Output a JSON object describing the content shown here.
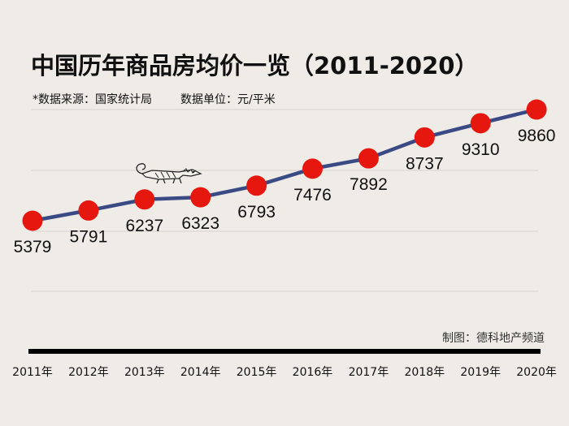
{
  "chart_data": {
    "type": "line",
    "title": "中国历年商品房均价一览（2011-2020）",
    "source": "*数据来源：国家统计局",
    "unit": "数据单位：元/平米",
    "credit": "制图：德科地产频道",
    "categories": [
      "2011年",
      "2012年",
      "2013年",
      "2014年",
      "2015年",
      "2016年",
      "2017年",
      "2018年",
      "2019年",
      "2020年"
    ],
    "series": [
      {
        "values": [
          5379,
          5791,
          6237,
          6323,
          6793,
          7476,
          7892,
          8737,
          9310,
          9860
        ]
      }
    ],
    "data_labels": [
      "5379",
      "5791",
      "6237",
      "6323",
      "6793",
      "7476",
      "7892",
      "8737",
      "9310",
      "9860"
    ],
    "grid": true,
    "line_color": "#3a4a85",
    "marker_color": "#e5170e",
    "axis_color": "#000000"
  }
}
